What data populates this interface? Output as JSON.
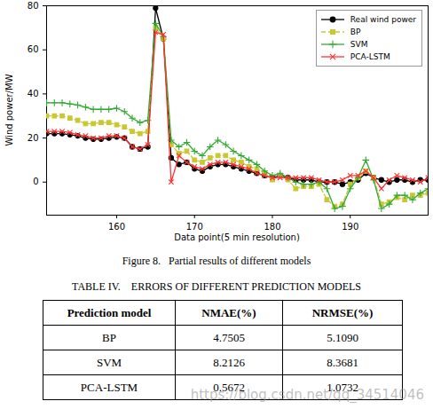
{
  "chart_data": {
    "type": "line",
    "x_label": "Data point(5 min resolution)",
    "y_label": "Wind power/MW",
    "x": [
      151,
      152,
      153,
      154,
      155,
      156,
      157,
      158,
      159,
      160,
      161,
      162,
      163,
      164,
      165,
      166,
      167,
      168,
      169,
      170,
      171,
      172,
      173,
      174,
      175,
      176,
      177,
      178,
      179,
      180,
      181,
      182,
      183,
      184,
      185,
      186,
      187,
      188,
      189,
      190,
      191,
      192,
      193,
      194,
      195,
      196,
      197,
      198,
      199,
      200
    ],
    "xlim": [
      151,
      200
    ],
    "xticks": [
      160,
      170,
      180,
      190
    ],
    "ylim": [
      -15,
      80
    ],
    "yticks": [
      0,
      20,
      40,
      60,
      80
    ],
    "legend": "upper right",
    "series": [
      {
        "name": "Real wind power",
        "color": "#000000",
        "marker": "circle",
        "line_style": "solid",
        "values": [
          22,
          22,
          22,
          21.5,
          21,
          20,
          19.5,
          19.5,
          20,
          20.5,
          20,
          16,
          15,
          16,
          79,
          65,
          11,
          8,
          9,
          6,
          5,
          7,
          8,
          8,
          7,
          6,
          5,
          4,
          3,
          2,
          3,
          2,
          1,
          1,
          1,
          0,
          0,
          0,
          -1,
          0,
          1,
          4,
          2,
          1,
          0,
          1,
          1,
          0,
          1,
          1
        ]
      },
      {
        "name": "BP",
        "color": "#c8c832",
        "marker": "square",
        "line_style": "dashed",
        "values": [
          30,
          30,
          30,
          29,
          28,
          26.5,
          26.5,
          27,
          27,
          26,
          25,
          23,
          22,
          23,
          70,
          65,
          17,
          13,
          14,
          10,
          9,
          11,
          12,
          12,
          10,
          9,
          7,
          6,
          4,
          1,
          3,
          1,
          -3,
          -2,
          -2,
          -1,
          -8,
          -11,
          -10,
          -1,
          2,
          5,
          2,
          -10,
          -9,
          -7,
          -8,
          -6,
          -6,
          -5
        ]
      },
      {
        "name": "SVM",
        "color": "#33aa33",
        "marker": "plus",
        "line_style": "solid",
        "values": [
          36,
          36,
          36,
          35.5,
          35,
          34,
          33,
          33,
          33,
          33.5,
          32,
          29,
          27,
          28,
          72,
          66,
          19,
          16,
          18,
          14,
          12,
          16,
          19,
          17,
          14,
          12,
          10,
          8,
          5,
          3,
          4,
          2,
          0,
          -1,
          -1,
          0,
          -3,
          -12,
          -11,
          -3,
          2,
          10,
          1,
          -12,
          -10,
          -6,
          -6,
          -8,
          -5,
          -3
        ]
      },
      {
        "name": "PCA-LSTM",
        "color": "#ff3333",
        "marker": "times",
        "line_style": "solid",
        "values": [
          23,
          23,
          23,
          22.5,
          21.5,
          21,
          20,
          20,
          21,
          21,
          20,
          16,
          15,
          17,
          68,
          67,
          0,
          12,
          9,
          7,
          6,
          8,
          9,
          9,
          8,
          7,
          6,
          4,
          3,
          2,
          2,
          2,
          2,
          2,
          2,
          1,
          0,
          0,
          1,
          3,
          3,
          5,
          2,
          -3,
          1,
          3,
          2,
          1,
          0,
          2
        ]
      }
    ]
  },
  "caption": "Figure 8.   Partial results of different models",
  "table": {
    "title": "TABLE IV.    ERRORS OF DIFFERENT PREDICTION MODELS",
    "header": [
      "Prediction model",
      "NMAE(%)",
      "NRMSE(%)"
    ],
    "rows": [
      [
        "BP",
        "4.7505",
        "5.1090"
      ],
      [
        "SVM",
        "8.2126",
        "8.3681"
      ],
      [
        "PCA-LSTM",
        "0.5672",
        "1.0732"
      ]
    ]
  },
  "watermark": "https://blog.csdn.net/qq_34514046"
}
